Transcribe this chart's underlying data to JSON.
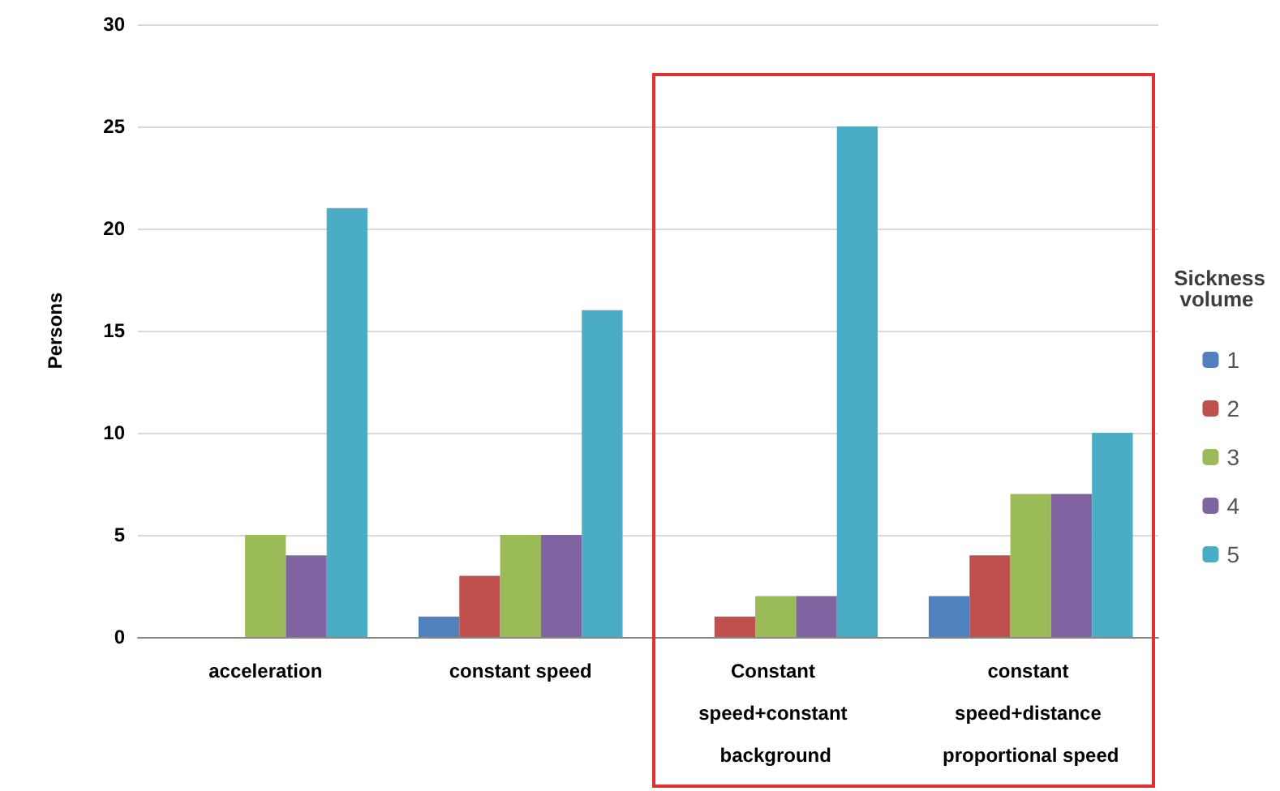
{
  "chart_data": {
    "type": "bar",
    "ylabel": "Persons",
    "legend_title": "Sickness volume",
    "categories": [
      "acceleration",
      "constant speed",
      "Constant speed+constant background",
      "constant speed+distance proportional speed"
    ],
    "series": [
      {
        "name": "1",
        "color": "#4f81bd",
        "values": [
          0,
          1,
          0,
          2
        ]
      },
      {
        "name": "2",
        "color": "#c0504d",
        "values": [
          0,
          3,
          1,
          4
        ]
      },
      {
        "name": "3",
        "color": "#9bbb59",
        "values": [
          5,
          5,
          2,
          7
        ]
      },
      {
        "name": "4",
        "color": "#8064a2",
        "values": [
          4,
          5,
          2,
          7
        ]
      },
      {
        "name": "5",
        "color": "#4bacc6",
        "values": [
          21,
          16,
          25,
          10
        ]
      }
    ],
    "ylim": [
      0,
      30
    ],
    "yticks": [
      0,
      5,
      10,
      15,
      20,
      25,
      30
    ],
    "grid": "y",
    "legend": "right"
  }
}
